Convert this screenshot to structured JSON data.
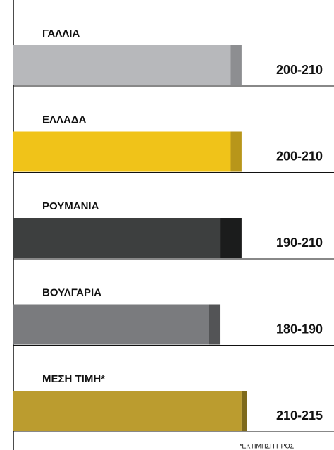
{
  "chart_data": {
    "type": "range_bar",
    "categories": [
      "ΓΑΛΛΙΑ",
      "ΕΛΛΑΔΑ",
      "ΡΟΥΜΑΝΙΑ",
      "ΒΟΥΛΓΑΡΙΑ",
      "ΜΕΣΗ ΤΙΜΗ*"
    ],
    "low": [
      200,
      200,
      190,
      180,
      210
    ],
    "high": [
      210,
      210,
      210,
      190,
      215
    ],
    "value_labels": [
      "200-210",
      "200-210",
      "190-210",
      "180-190",
      "210-215"
    ],
    "colors": [
      "#b7b8bb",
      "#f0c319",
      "#3d3f3f",
      "#7a7b7e",
      "#bb9c2f"
    ],
    "range_colors": [
      "#8d8e91",
      "#b8961a",
      "#1b1c1c",
      "#535456",
      "#7e6a1c"
    ],
    "xlim": [
      0,
      295
    ],
    "footnote": "*ΕΚΤΙΜΗΣΗ ΠΡΟΣ"
  }
}
